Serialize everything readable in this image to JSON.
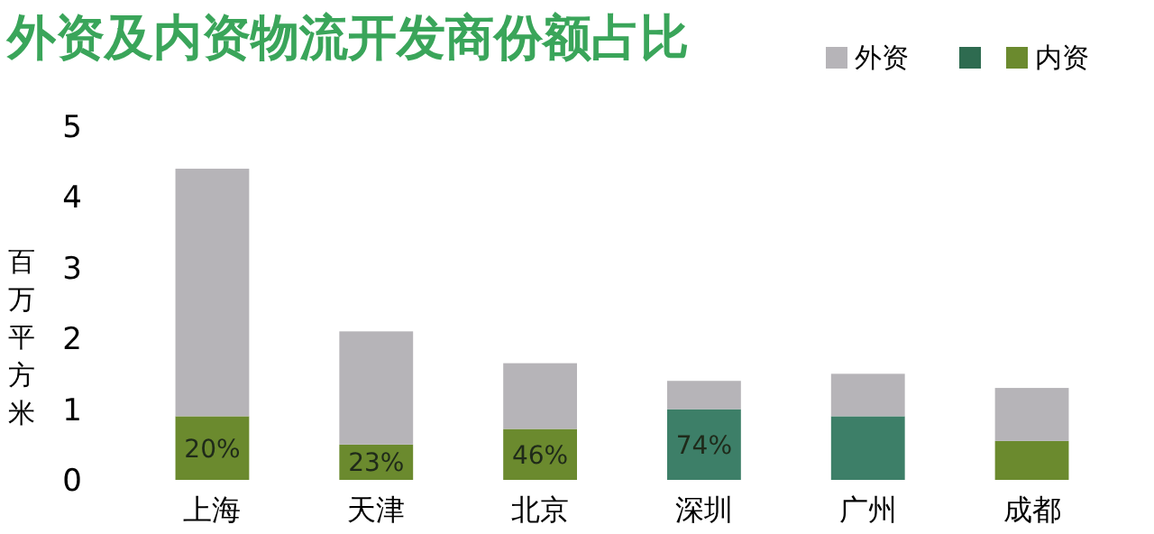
{
  "chart_data": {
    "type": "bar",
    "title": "外资及内资物流开发商份额占比",
    "ylabel": "百万平方米",
    "categories": [
      "上海",
      "天津",
      "北京",
      "深圳",
      "广州",
      "成都"
    ],
    "stacked": true,
    "ylim": [
      0,
      5
    ],
    "yticks": [
      0,
      1,
      2,
      3,
      4,
      5
    ],
    "grid": false,
    "legend": "top right",
    "annotations": [
      {
        "text": "20%",
        "x": "上海",
        "y": 0.9
      },
      {
        "text": "23%",
        "x": "天津",
        "y": 0.5
      },
      {
        "text": "46%",
        "x": "北京",
        "y": 0.72
      },
      {
        "text": "74%",
        "x": "深圳",
        "y": 1.0
      }
    ],
    "series": [
      {
        "name": "内资",
        "color": "#6b8a2e",
        "colors": [
          "#6b8a2e",
          "#6b8a2e",
          "#6b8a2e",
          "#3d7f68",
          "#3d7f68",
          "#6b8a2e"
        ],
        "values": [
          0.9,
          0.5,
          0.72,
          1.0,
          0.9,
          0.55
        ]
      },
      {
        "name": "外资",
        "color": "#b6b4b8",
        "values": [
          3.5,
          1.6,
          0.93,
          0.4,
          0.6,
          0.75
        ]
      }
    ]
  }
}
